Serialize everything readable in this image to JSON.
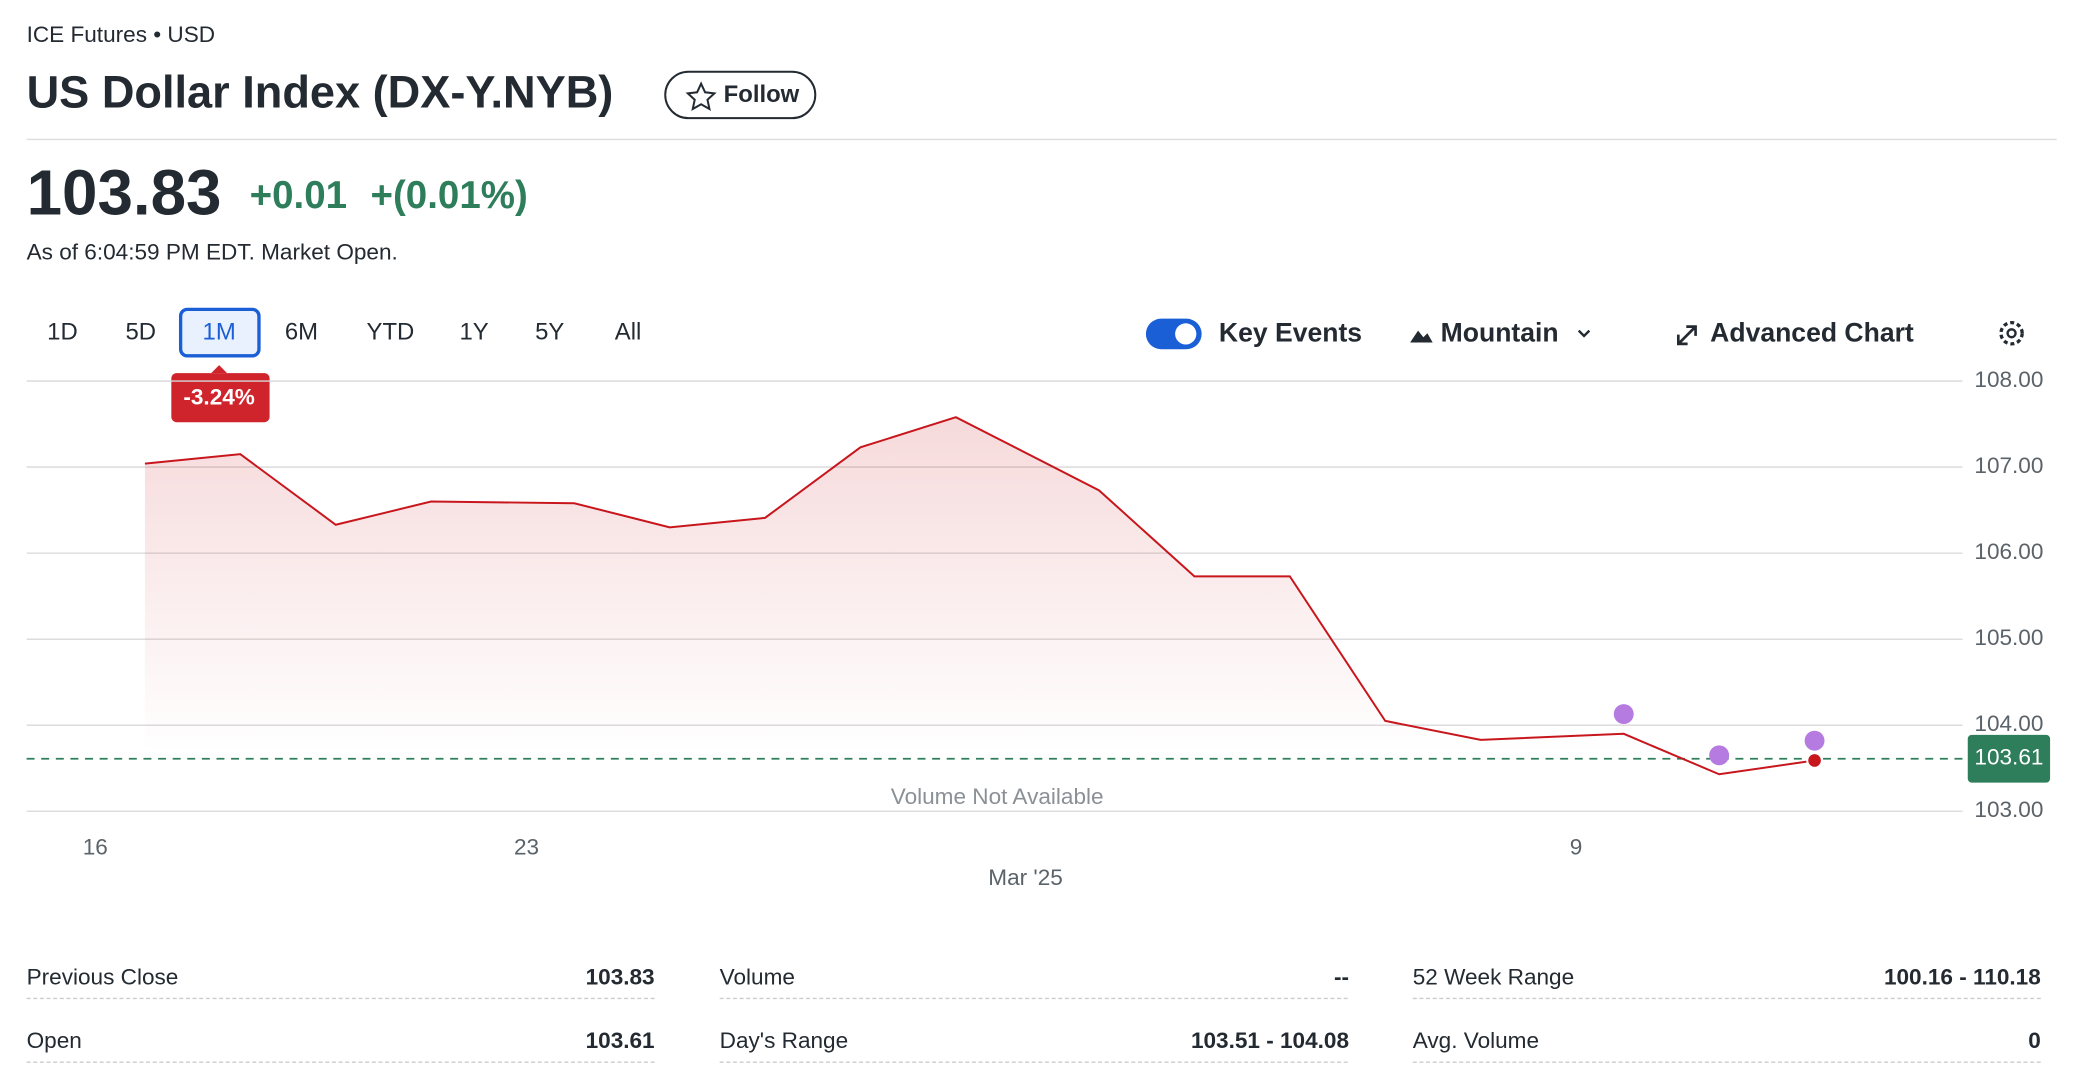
{
  "header": {
    "exchange": "ICE Futures • USD",
    "title": "US Dollar Index (DX-Y.NYB)",
    "follow": "Follow"
  },
  "quote": {
    "price": "103.83",
    "change": "+0.01",
    "change_pct": "+(0.01%)",
    "as_of": "As of 6:04:59 PM EDT. Market Open."
  },
  "ranges": {
    "buttons": [
      "1D",
      "5D",
      "1M",
      "6M",
      "YTD",
      "1Y",
      "5Y",
      "All"
    ],
    "selected": 2,
    "badge": "-3.24%"
  },
  "toolbar": {
    "key_events": "Key Events",
    "chart_type": "Mountain",
    "advanced": "Advanced Chart"
  },
  "chart_data": {
    "type": "area",
    "x": [
      0,
      1,
      2,
      3,
      4.5,
      5.5,
      6.5,
      7.5,
      8.5,
      10,
      11,
      12,
      13,
      14,
      15.5,
      16.5,
      17.5
    ],
    "series": [
      {
        "color": "#c8161d",
        "values": [
          107.04,
          107.15,
          106.33,
          106.6,
          106.58,
          106.3,
          106.41,
          107.23,
          107.58,
          106.73,
          105.73,
          105.73,
          104.05,
          103.83,
          103.9,
          103.43,
          103.59
        ]
      }
    ],
    "key_events": {
      "color": "#b57be0",
      "x": [
        15.5,
        16.5,
        17.5
      ],
      "values": [
        104.13,
        103.65,
        103.82
      ]
    },
    "reference": {
      "value": 103.61,
      "label": "103.61",
      "color": "#2e7d5b"
    },
    "annotation": "Volume Not Available",
    "xlim": [
      -1.24,
      19.05
    ],
    "xticks": [
      {
        "value": -0.52,
        "label": "16"
      },
      {
        "value": 4,
        "label": "23"
      },
      {
        "value": 15,
        "label": "9"
      }
    ],
    "x_month": {
      "value": 9.23,
      "label": "Mar '25"
    },
    "ylim": [
      103,
      108
    ],
    "yticks": [
      {
        "value": 103,
        "label": "103.00"
      },
      {
        "value": 104,
        "label": "104.00"
      },
      {
        "value": 105,
        "label": "105.00"
      },
      {
        "value": 106,
        "label": "106.00"
      },
      {
        "value": 107,
        "label": "107.00"
      },
      {
        "value": 108,
        "label": "108.00"
      }
    ],
    "grid": true
  },
  "stats": [
    [
      [
        "Previous Close",
        "103.83"
      ],
      [
        "Open",
        "103.61"
      ]
    ],
    [
      [
        "Volume",
        "--"
      ],
      [
        "Day's Range",
        "103.51 - 104.08"
      ]
    ],
    [
      [
        "52 Week Range",
        "100.16 - 110.18"
      ],
      [
        "Avg. Volume",
        "0"
      ]
    ]
  ]
}
